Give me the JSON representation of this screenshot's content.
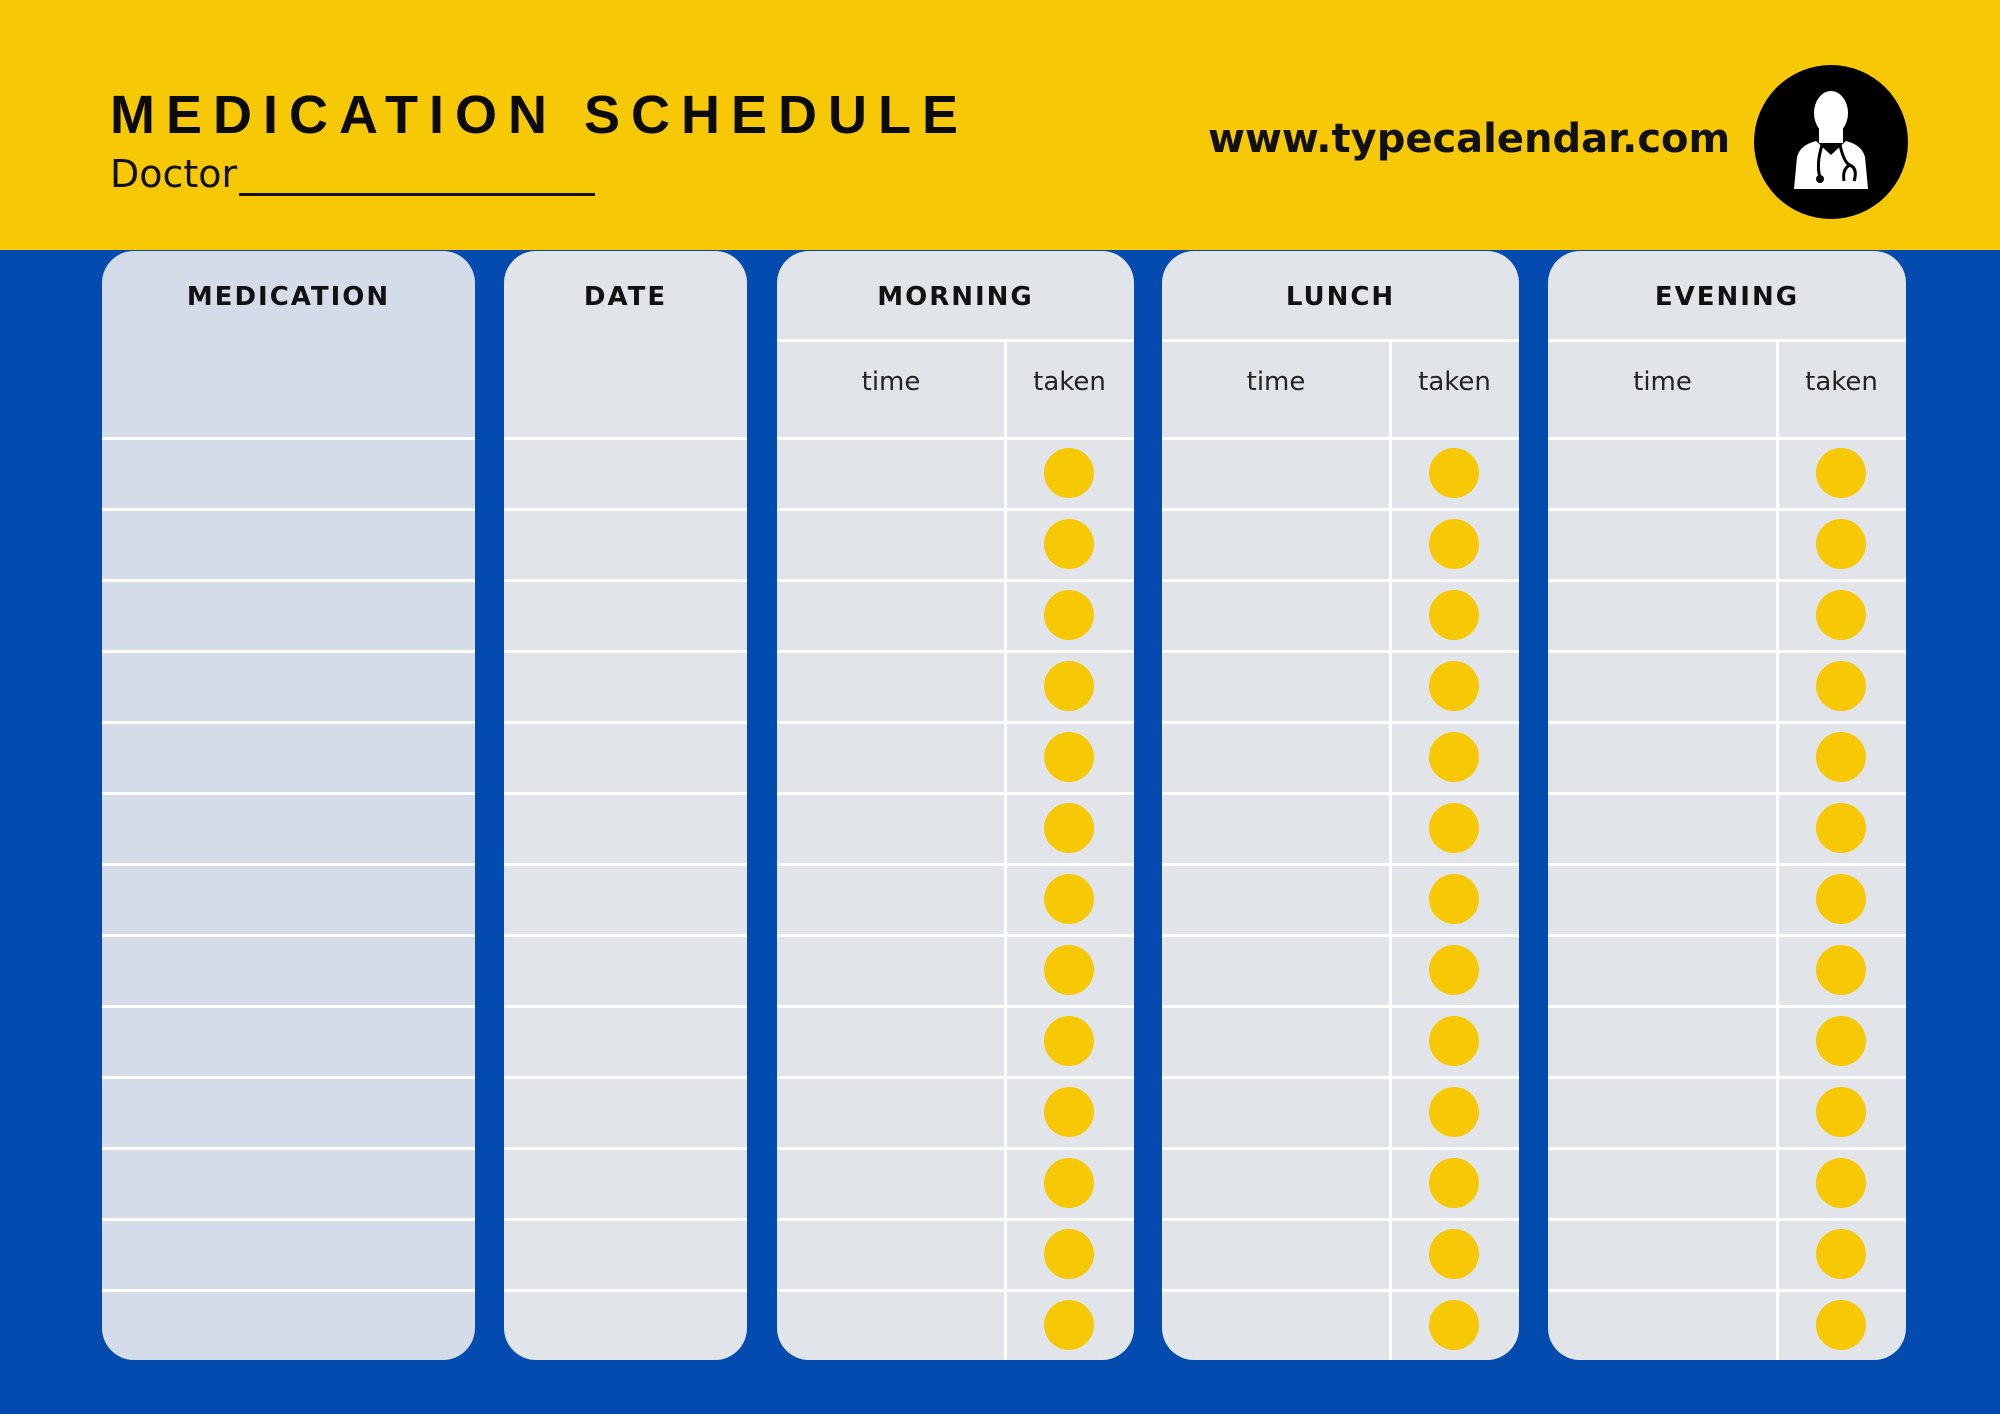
{
  "header": {
    "title": "MEDICATION SCHEDULE",
    "doctor_label": "Doctor",
    "doctor_value": "",
    "website": "www.typecalendar.com",
    "icon": "doctor-icon"
  },
  "columns": {
    "medication": "MEDICATION",
    "date": "DATE",
    "morning": {
      "label": "MORNING",
      "time": "time",
      "taken": "taken"
    },
    "lunch": {
      "label": "LUNCH",
      "time": "time",
      "taken": "taken"
    },
    "evening": {
      "label": "EVENING",
      "time": "time",
      "taken": "taken"
    }
  },
  "row_count": 13,
  "colors": {
    "yellow": "#F6C805",
    "blue": "#034BAF",
    "panel": "#E1E5EA",
    "medication_panel": "#D3DCE8"
  }
}
